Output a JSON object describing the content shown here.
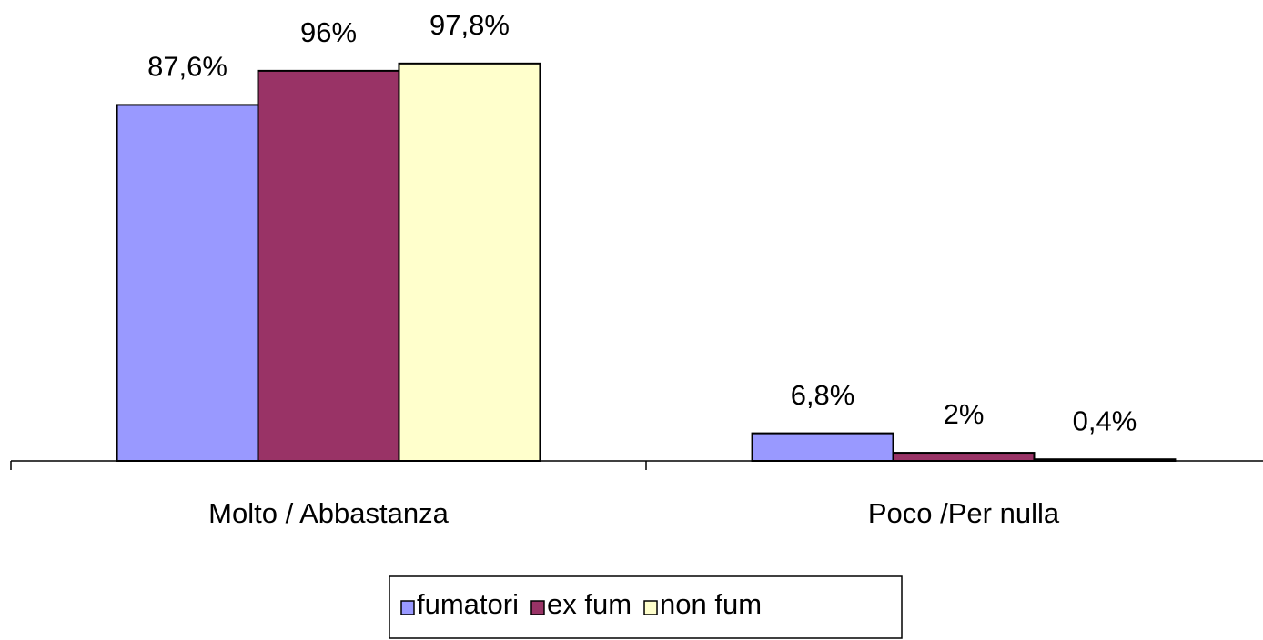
{
  "chart_data": {
    "type": "bar",
    "categories": [
      "Molto / Abbastanza",
      "Poco /Per nulla"
    ],
    "series": [
      {
        "name": "fumatori",
        "color": "#9999ff",
        "values": [
          87.6,
          6.8
        ],
        "value_labels": [
          "87,6%",
          "6,8%"
        ]
      },
      {
        "name": "ex fum",
        "color": "#993366",
        "values": [
          96,
          2
        ],
        "value_labels": [
          "96%",
          "2%"
        ]
      },
      {
        "name": "non fum",
        "color": "#ffffcc",
        "values": [
          97.8,
          0.4
        ],
        "value_labels": [
          "97,8%",
          "0,4%"
        ]
      }
    ],
    "ylim": [
      0,
      100
    ],
    "legend": "bottom"
  }
}
